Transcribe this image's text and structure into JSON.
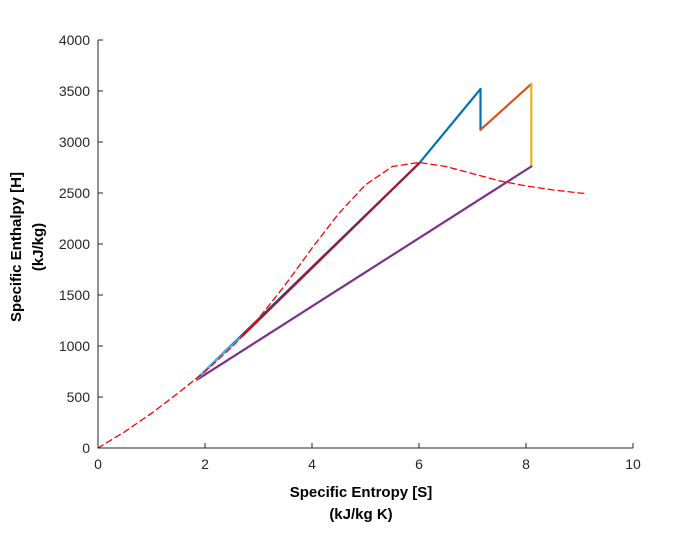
{
  "chart_data": {
    "type": "line",
    "title": "",
    "xlabel": "Specific Entropy [S]",
    "xlabel_units": "(kJ/kg K)",
    "ylabel": "Specific Enthalpy [H]",
    "ylabel_units": "(kJ/kg)",
    "xlim": [
      0,
      10
    ],
    "ylim": [
      0,
      4000
    ],
    "xticks": [
      0,
      2,
      4,
      6,
      8,
      10
    ],
    "yticks": [
      0,
      500,
      1000,
      1500,
      2000,
      2500,
      3000,
      3500,
      4000
    ],
    "grid": false,
    "legend": "none",
    "series": [
      {
        "color": "#0072BD",
        "style": "solid",
        "x": [
          1.85,
          6.0,
          7.15
        ],
        "y": [
          680,
          2790,
          3520
        ]
      },
      {
        "color": "#0072BD",
        "style": "solid",
        "x": [
          7.15,
          7.15
        ],
        "y": [
          3520,
          3120
        ]
      },
      {
        "color": "#D95319",
        "style": "solid",
        "x": [
          7.15,
          8.1
        ],
        "y": [
          3120,
          3570
        ]
      },
      {
        "color": "#EDB120",
        "style": "solid",
        "x": [
          8.1,
          8.1
        ],
        "y": [
          3570,
          2760
        ]
      },
      {
        "color": "#7E2F8E",
        "style": "solid",
        "x": [
          8.1,
          1.85
        ],
        "y": [
          2760,
          670
        ]
      },
      {
        "color": "#4DBEEE",
        "style": "solid",
        "x": [
          1.85,
          2.7
        ],
        "y": [
          680,
          1100
        ]
      },
      {
        "color": "#A2142F",
        "style": "solid",
        "x": [
          2.7,
          6.0
        ],
        "y": [
          1100,
          2790
        ]
      },
      {
        "color": "#FF0000",
        "style": "dashed",
        "x": [
          0,
          0.5,
          1.0,
          1.5,
          2.0,
          2.5,
          3.0,
          3.5,
          4.0,
          4.5,
          5.0,
          5.5,
          6.0,
          6.5,
          7.0,
          7.5,
          8.0,
          8.5,
          9.0,
          9.1
        ],
        "y": [
          0,
          160,
          340,
          540,
          750,
          990,
          1270,
          1600,
          1960,
          2300,
          2580,
          2760,
          2800,
          2760,
          2690,
          2620,
          2570,
          2530,
          2500,
          2495
        ]
      }
    ]
  }
}
